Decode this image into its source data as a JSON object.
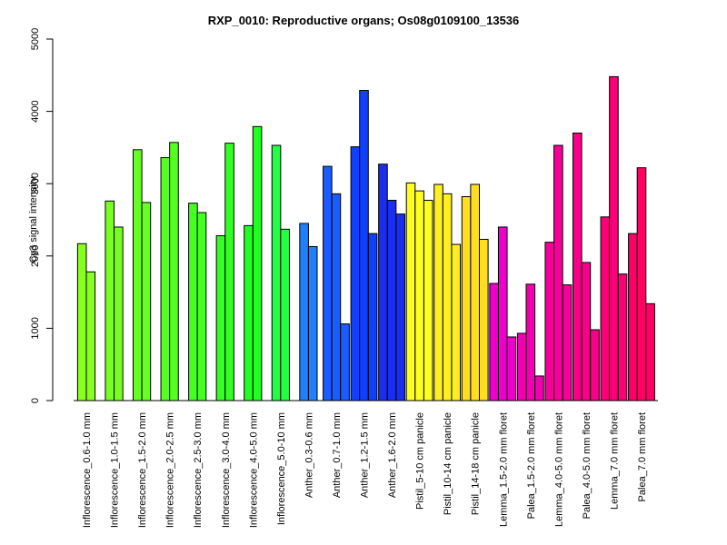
{
  "chart_data": {
    "type": "bar",
    "title": "RXP_0010: Reproductive organs; Os08g0109100_13536",
    "xlabel": "",
    "ylabel": "Cy3 signal intensity",
    "ylim": [
      0,
      5000
    ],
    "yticks": [
      0,
      1000,
      2000,
      3000,
      4000,
      5000
    ],
    "grid": false,
    "legend": "none",
    "categories": [
      "Inflorescence_0.6-1.0 mm",
      "Inflorescence_1.0-1.5 mm",
      "Inflorescence_1.5-2.0 mm",
      "Inflorescence_2.0-2.5 mm",
      "Inflorescence_2.5-3.0 mm",
      "Inflorescence_3.0-4.0 mm",
      "Inflorescence_4.0-5.0 mm",
      "Inflorescence_5.0-10 mm",
      "Anther_0.3-0.6 mm",
      "Anther_0.7-1.0 mm",
      "Anther_1.2-1.5 mm",
      "Anther_1.6-2.0 mm",
      "Pistil_5-10 cm panicle",
      "Pistil_10-14 cm panicle",
      "Pistil_14-18 cm panicle",
      "Lemma_1.5-2.0 mm floret",
      "Palea_1.5-2.0 mm floret",
      "Lemma_4.0-5.0 mm floret",
      "Palea_4.0-5.0 mm floret",
      "Lemma_7.0 mm floret",
      "Palea_7.0 mm floret"
    ],
    "groups": [
      {
        "values": [
          2170,
          1780
        ],
        "color": "#88ff22"
      },
      {
        "values": [
          2760,
          2400
        ],
        "color": "#77ff22"
      },
      {
        "values": [
          3470,
          2740
        ],
        "color": "#66ff22"
      },
      {
        "values": [
          3360,
          3570
        ],
        "color": "#55ff22"
      },
      {
        "values": [
          2730,
          2600
        ],
        "color": "#44ff22"
      },
      {
        "values": [
          2280,
          3560
        ],
        "color": "#33ff22"
      },
      {
        "values": [
          2420,
          3790
        ],
        "color": "#22ff22"
      },
      {
        "values": [
          3530,
          2370
        ],
        "color": "#22ff44"
      },
      {
        "values": [
          2450,
          2130
        ],
        "color": "#1f7fff"
      },
      {
        "values": [
          3240,
          2860,
          1060
        ],
        "color": "#1a5cff"
      },
      {
        "values": [
          3510,
          4290,
          2310
        ],
        "color": "#1040ff"
      },
      {
        "values": [
          3270,
          2770,
          2580
        ],
        "color": "#1a2eee"
      },
      {
        "values": [
          3010,
          2900,
          2770
        ],
        "color": "#ffff22"
      },
      {
        "values": [
          2990,
          2860,
          2160
        ],
        "color": "#ffee22"
      },
      {
        "values": [
          2820,
          2990,
          2230
        ],
        "color": "#ffdd22"
      },
      {
        "values": [
          1620,
          2400,
          880
        ],
        "color": "#ee00cc"
      },
      {
        "values": [
          930,
          1610,
          340
        ],
        "color": "#f000b0"
      },
      {
        "values": [
          2190,
          3530,
          1600
        ],
        "color": "#f50099"
      },
      {
        "values": [
          3700,
          1910,
          980
        ],
        "color": "#f80088"
      },
      {
        "values": [
          2540,
          4480,
          1750
        ],
        "color": "#fb0077"
      },
      {
        "values": [
          2310,
          3220,
          1340
        ],
        "color": "#ff0066"
      }
    ]
  }
}
